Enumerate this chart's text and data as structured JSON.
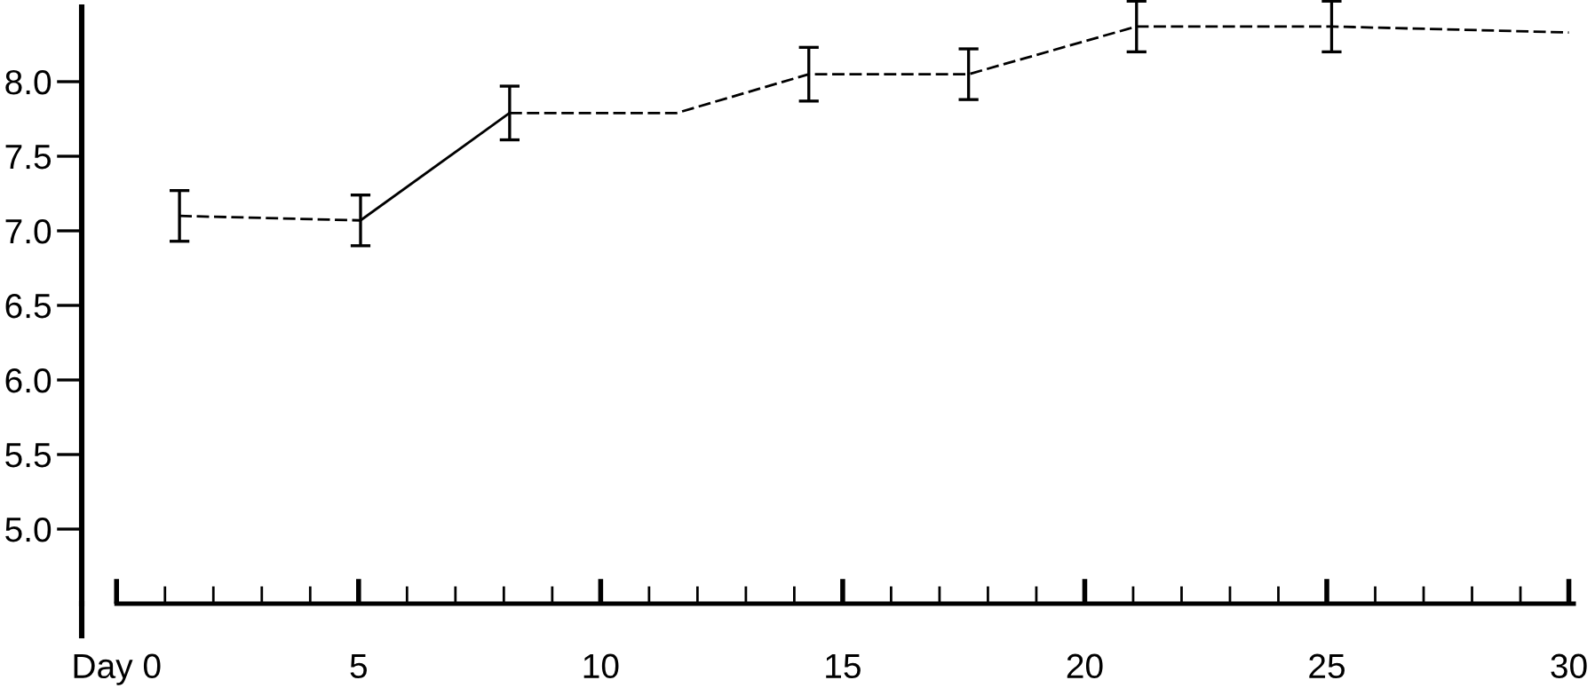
{
  "chart_data": {
    "type": "line",
    "xlim": [
      -0.72,
      30.1
    ],
    "ylim": [
      4.5,
      8.5
    ],
    "xticks": [
      {
        "value": 0,
        "label": "Day 0"
      },
      {
        "value": 1,
        "label": null
      },
      {
        "value": 2,
        "label": null
      },
      {
        "value": 3,
        "label": null
      },
      {
        "value": 4,
        "label": null
      },
      5,
      {
        "value": 6,
        "label": null
      },
      {
        "value": 7,
        "label": null
      },
      {
        "value": 8,
        "label": null
      },
      {
        "value": 9,
        "label": null
      },
      10,
      {
        "value": 11,
        "label": null
      },
      {
        "value": 12,
        "label": null
      },
      {
        "value": 13,
        "label": null
      },
      {
        "value": 14,
        "label": null
      },
      15,
      {
        "value": 16,
        "label": null
      },
      {
        "value": 17,
        "label": null
      },
      {
        "value": 18,
        "label": null
      },
      {
        "value": 19,
        "label": null
      },
      20,
      {
        "value": 21,
        "label": null
      },
      {
        "value": 22,
        "label": null
      },
      {
        "value": 23,
        "label": null
      },
      {
        "value": 24,
        "label": null
      },
      25,
      {
        "value": 26,
        "label": null
      },
      {
        "value": 27,
        "label": null
      },
      {
        "value": 28,
        "label": null
      },
      {
        "value": 29,
        "label": null
      },
      30
    ],
    "yticks": [
      {
        "value": 5,
        "label": "5.0"
      },
      {
        "value": 5.5,
        "label": "5.5"
      },
      {
        "value": 6,
        "label": "6.0"
      },
      {
        "value": 6.5,
        "label": "6.5"
      },
      {
        "value": 7,
        "label": "7.0"
      },
      {
        "value": 7.5,
        "label": "7.5"
      },
      {
        "value": 8,
        "label": "8.0"
      }
    ],
    "grid": false,
    "marker": "none",
    "series": [
      {
        "color": "#000000",
        "line_style": "dashed",
        "x": [
          1.3,
          5.04
        ],
        "values": [
          7.1,
          7.07
        ],
        "errors": [
          0.17,
          0.17
        ]
      },
      {
        "color": "#000000",
        "line_style": "solid",
        "x": [
          5.04,
          8.12
        ],
        "values": [
          7.07,
          7.79
        ],
        "errors": [
          null,
          null
        ]
      },
      {
        "color": "#000000",
        "line_style": "dashed",
        "x": [
          8.12,
          11.57,
          14.3,
          17.6,
          21.07,
          25.1,
          30
        ],
        "values": [
          7.79,
          7.79,
          8.05,
          8.05,
          8.37,
          8.37,
          8.33
        ],
        "errors": [
          0.18,
          null,
          0.18,
          0.17,
          0.17,
          0.17,
          null
        ]
      }
    ]
  }
}
